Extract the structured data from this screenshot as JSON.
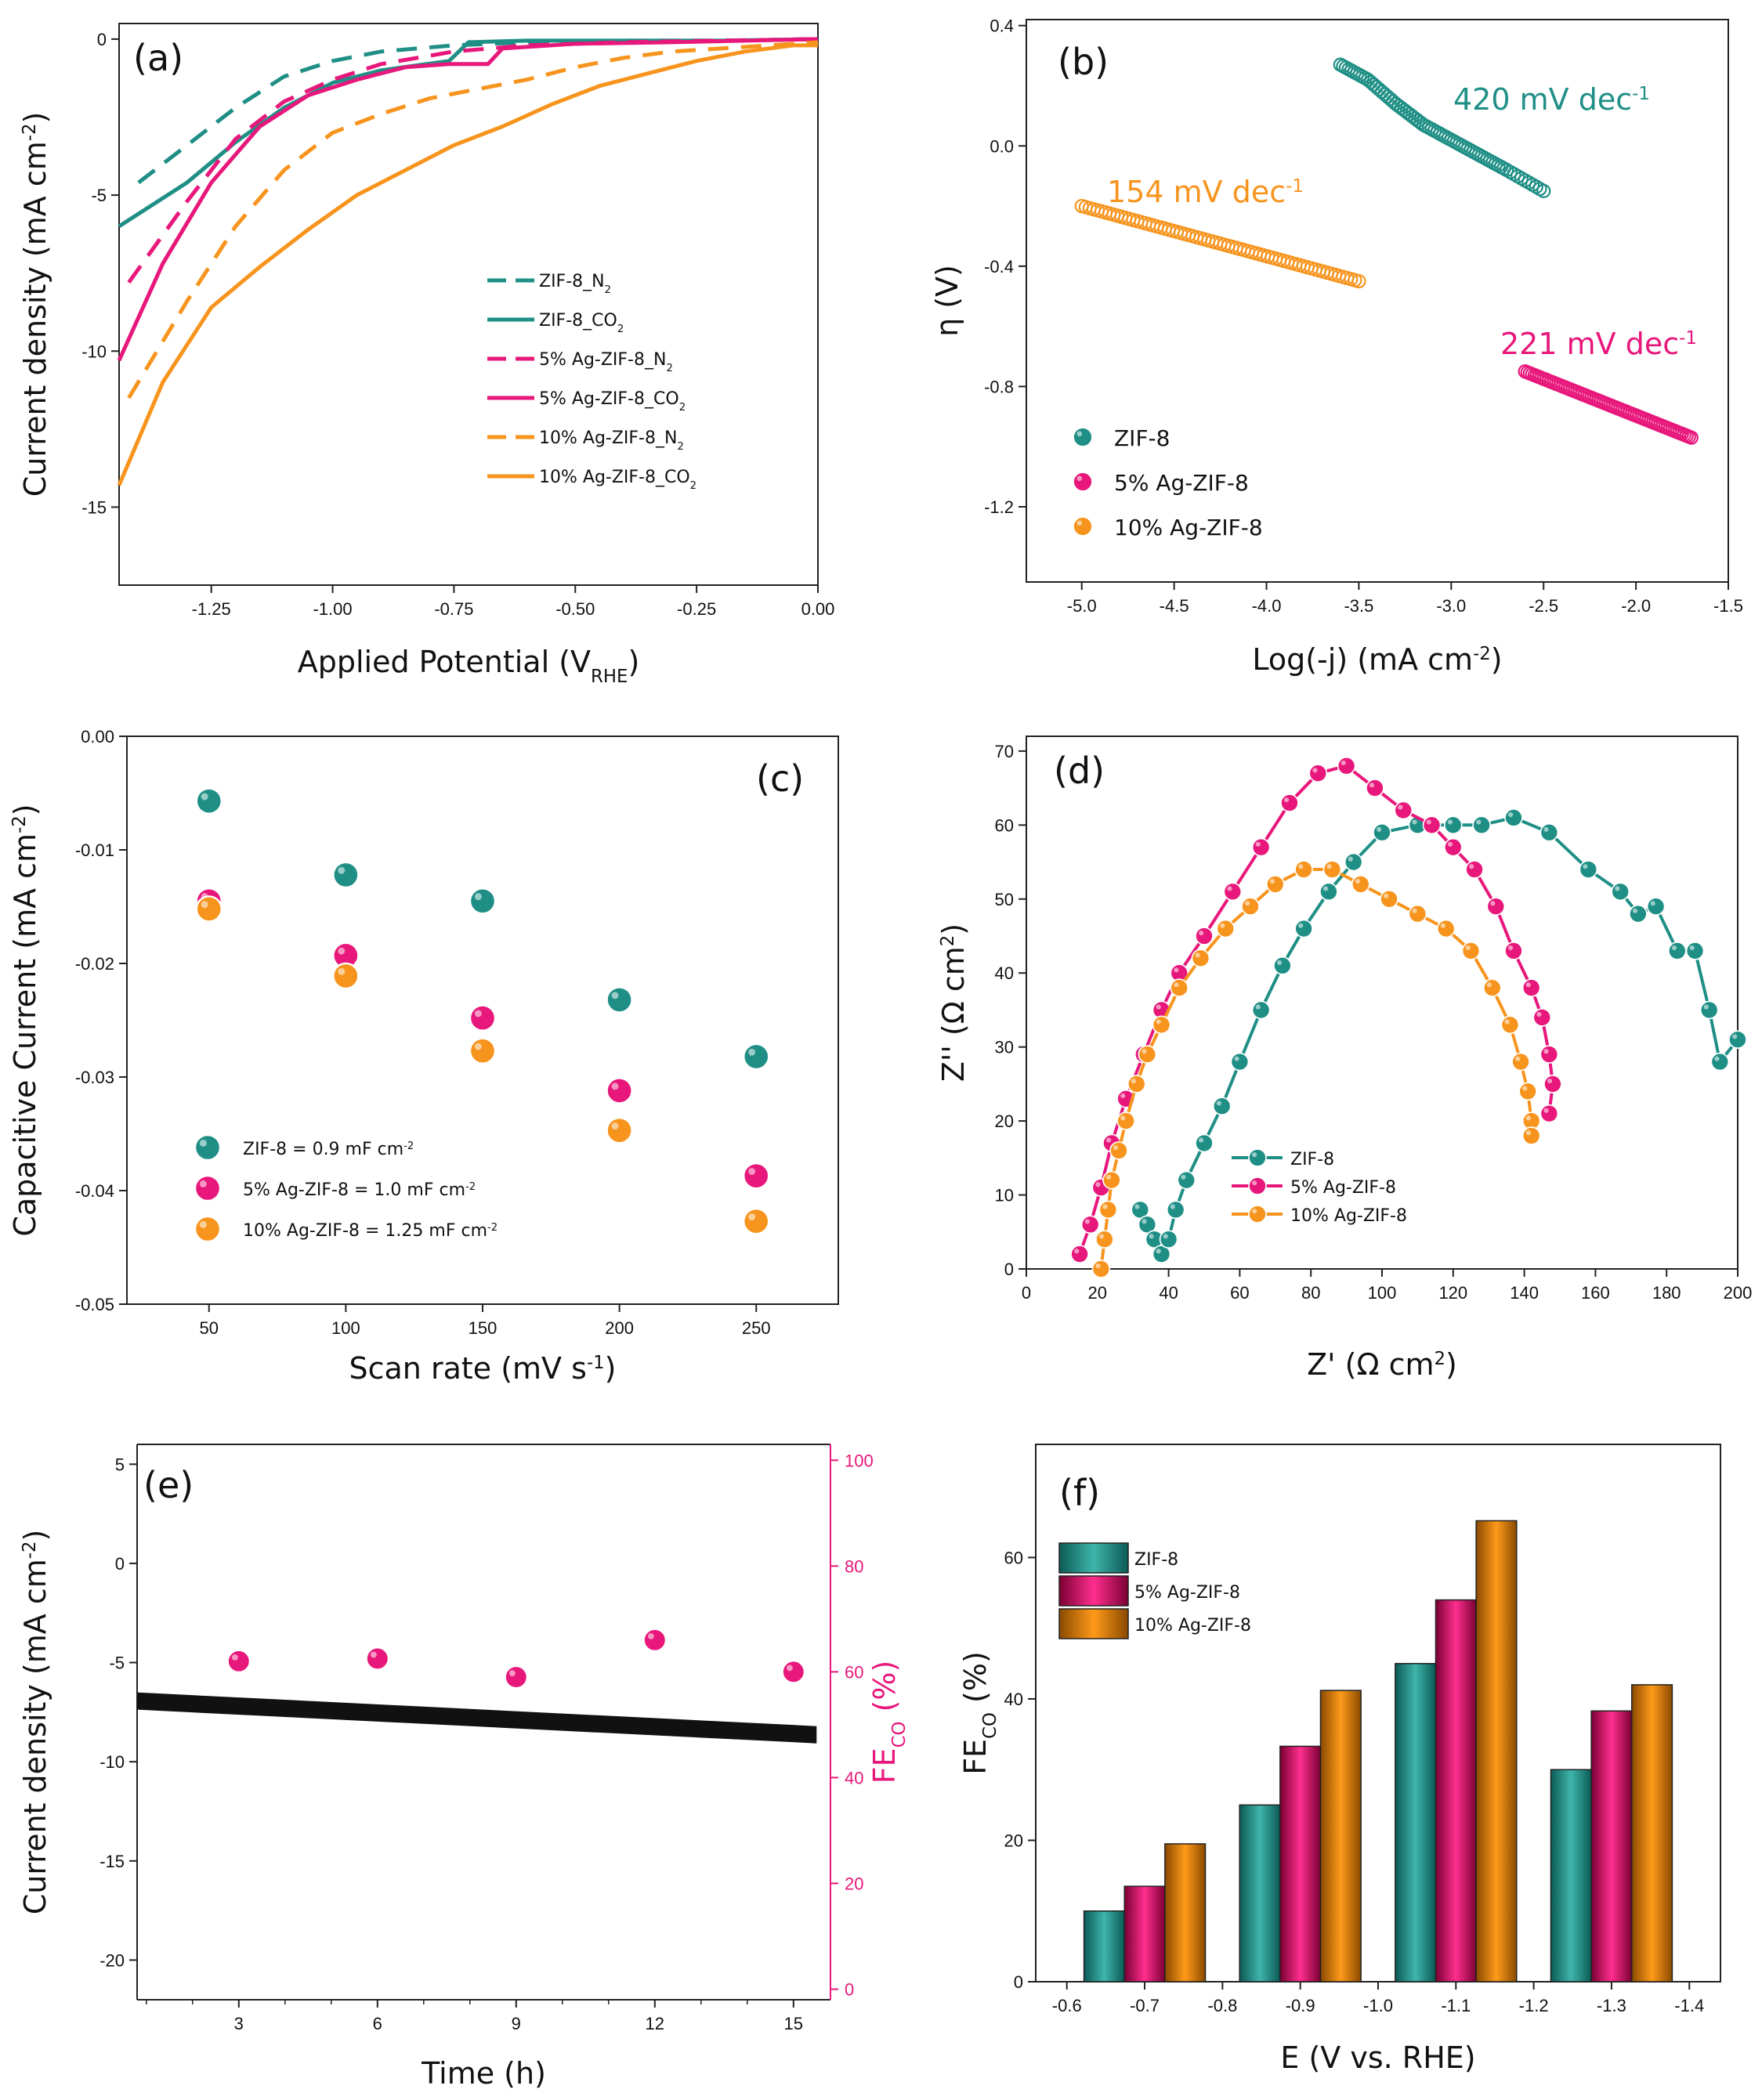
{
  "colors": {
    "teal": "#1f8f86",
    "pink": "#e8177b",
    "orange": "#f7941d",
    "black": "#111111"
  },
  "chart_data": [
    {
      "id": "a",
      "type": "line",
      "panel_label": "(a)",
      "xlabel": "Applied Potential (V",
      "xlabel_sub": "RHE",
      "xlabel_end": ")",
      "ylabel": "Current density (mA cm",
      "ylabel_sup": "-2",
      "ylabel_end": ")",
      "xlim": [
        -1.44,
        0.0
      ],
      "ylim": [
        -17.5,
        0.5
      ],
      "xticks": [
        -1.25,
        -1.0,
        -0.75,
        -0.5,
        -0.25,
        0.0
      ],
      "xtick_labels": [
        "-1.25",
        "-1.00",
        "-0.75",
        "-0.50",
        "-0.25",
        "0.00"
      ],
      "yticks": [
        0,
        -5,
        -10,
        -15
      ],
      "ytick_labels": [
        "0",
        "-5",
        "-10",
        "-15"
      ],
      "series": [
        {
          "name": "ZIF-8_N",
          "sub": "2",
          "color": "teal",
          "dash": true,
          "x": [
            -1.4,
            -1.3,
            -1.2,
            -1.1,
            -1.0,
            -0.9,
            -0.75,
            -0.6,
            -0.4,
            -0.2,
            0.0
          ],
          "y": [
            -4.6,
            -3.4,
            -2.2,
            -1.2,
            -0.7,
            -0.4,
            -0.2,
            -0.1,
            -0.05,
            -0.05,
            0.0
          ]
        },
        {
          "name": "ZIF-8_CO",
          "sub": "2",
          "color": "teal",
          "dash": false,
          "x": [
            -1.44,
            -1.3,
            -1.2,
            -1.1,
            -1.0,
            -0.9,
            -0.76,
            -0.72,
            -0.6,
            -0.4,
            -0.2,
            0.0
          ],
          "y": [
            -6.0,
            -4.6,
            -3.3,
            -2.2,
            -1.4,
            -1.0,
            -0.7,
            -0.1,
            -0.05,
            -0.05,
            -0.05,
            0.0
          ]
        },
        {
          "name": "5% Ag-ZIF-8_N",
          "sub": "2",
          "color": "pink",
          "dash": true,
          "x": [
            -1.42,
            -1.3,
            -1.2,
            -1.1,
            -1.0,
            -0.9,
            -0.75,
            -0.6,
            -0.4,
            -0.2,
            0.0
          ],
          "y": [
            -7.8,
            -5.2,
            -3.2,
            -2.0,
            -1.3,
            -0.8,
            -0.4,
            -0.2,
            -0.1,
            -0.05,
            0.0
          ]
        },
        {
          "name": "5% Ag-ZIF-8_CO",
          "sub": "2",
          "color": "pink",
          "dash": false,
          "x": [
            -1.44,
            -1.35,
            -1.25,
            -1.15,
            -1.05,
            -0.95,
            -0.85,
            -0.76,
            -0.68,
            -0.65,
            -0.5,
            -0.3,
            0.0
          ],
          "y": [
            -10.3,
            -7.2,
            -4.6,
            -2.8,
            -1.8,
            -1.3,
            -0.9,
            -0.8,
            -0.8,
            -0.3,
            -0.15,
            -0.1,
            0.0
          ]
        },
        {
          "name": "10% Ag-ZIF-8_N",
          "sub": "2",
          "color": "orange",
          "dash": true,
          "x": [
            -1.42,
            -1.3,
            -1.2,
            -1.1,
            -1.0,
            -0.9,
            -0.8,
            -0.7,
            -0.6,
            -0.5,
            -0.4,
            -0.3,
            -0.2,
            -0.1,
            0.0
          ],
          "y": [
            -11.5,
            -8.4,
            -6.0,
            -4.2,
            -3.0,
            -2.4,
            -1.9,
            -1.6,
            -1.3,
            -0.9,
            -0.6,
            -0.4,
            -0.3,
            -0.2,
            -0.1
          ]
        },
        {
          "name": "10% Ag-ZIF-8_CO",
          "sub": "2",
          "color": "orange",
          "dash": false,
          "x": [
            -1.44,
            -1.35,
            -1.25,
            -1.15,
            -1.05,
            -0.95,
            -0.85,
            -0.75,
            -0.65,
            -0.55,
            -0.45,
            -0.35,
            -0.25,
            -0.15,
            -0.05,
            0.0
          ],
          "y": [
            -14.3,
            -11.0,
            -8.6,
            -7.3,
            -6.1,
            -5.0,
            -4.2,
            -3.4,
            -2.8,
            -2.1,
            -1.5,
            -1.1,
            -0.7,
            -0.4,
            -0.2,
            -0.2
          ]
        }
      ]
    },
    {
      "id": "b",
      "type": "scatter",
      "panel_label": "(b)",
      "xlabel": "Log(-j) (mA cm",
      "xlabel_sup": "-2",
      "xlabel_end": ")",
      "ylabel": "η (V)",
      "xlim": [
        -5.3,
        -1.5
      ],
      "ylim": [
        -1.45,
        0.42
      ],
      "xticks": [
        -5.0,
        -4.5,
        -4.0,
        -3.5,
        -3.0,
        -2.5,
        -2.0,
        -1.5
      ],
      "xtick_labels": [
        "-5.0",
        "-4.5",
        "-4.0",
        "-3.5",
        "-3.0",
        "-2.5",
        "-2.0",
        "-1.5"
      ],
      "yticks": [
        0.4,
        0.0,
        -0.4,
        -0.8,
        -1.2
      ],
      "ytick_labels": [
        "0.4",
        "0.0",
        "-0.4",
        "-0.8",
        "-1.2"
      ],
      "series": [
        {
          "name": "ZIF-8",
          "color": "teal",
          "x": [
            -3.6,
            -3.45,
            -3.3,
            -3.15,
            -3.0,
            -2.85,
            -2.7,
            -2.5
          ],
          "y": [
            0.27,
            0.22,
            0.14,
            0.07,
            0.02,
            -0.03,
            -0.08,
            -0.15
          ]
        },
        {
          "name": "5% Ag-ZIF-8",
          "color": "pink",
          "x": [
            -2.6,
            -1.7
          ],
          "y": [
            -0.75,
            -0.97
          ]
        },
        {
          "name": "10% Ag-ZIF-8",
          "color": "orange",
          "x": [
            -5.0,
            -3.5
          ],
          "y": [
            -0.2,
            -0.45
          ]
        }
      ],
      "annotations": [
        {
          "text": "420 mV dec",
          "sup": "-1",
          "color": "teal"
        },
        {
          "text": "154 mV dec",
          "sup": "-1",
          "color": "orange"
        },
        {
          "text": "221 mV dec",
          "sup": "-1",
          "color": "pink"
        }
      ]
    },
    {
      "id": "c",
      "type": "scatter",
      "panel_label": "(c)",
      "xlabel": "Scan rate (mV s",
      "xlabel_sup": "-1",
      "xlabel_end": ")",
      "ylabel": "Capacitive Current (mA cm",
      "ylabel_sup": "-2",
      "ylabel_end": ")",
      "xlim": [
        20,
        280
      ],
      "ylim": [
        -0.05,
        0.0
      ],
      "xticks": [
        50,
        100,
        150,
        200,
        250
      ],
      "xtick_labels": [
        "50",
        "100",
        "150",
        "200",
        "250"
      ],
      "yticks": [
        0.0,
        -0.01,
        -0.02,
        -0.03,
        -0.04,
        -0.05
      ],
      "ytick_labels": [
        "0.00",
        "-0.01",
        "-0.02",
        "-0.03",
        "-0.04",
        "-0.05"
      ],
      "series": [
        {
          "name": "ZIF-8 = 0.9 mF cm",
          "sup": "-2",
          "color": "teal",
          "x": [
            50,
            100,
            150,
            200,
            250
          ],
          "y": [
            -0.0057,
            -0.0122,
            -0.0145,
            -0.0232,
            -0.0282
          ]
        },
        {
          "name": "5% Ag-ZIF-8 = 1.0 mF cm",
          "sup": "-2",
          "color": "pink",
          "x": [
            50,
            100,
            150,
            200,
            250
          ],
          "y": [
            -0.0145,
            -0.0193,
            -0.0248,
            -0.0312,
            -0.0387
          ]
        },
        {
          "name": "10% Ag-ZIF-8 = 1.25 mF cm",
          "sup": "-2",
          "color": "orange",
          "x": [
            50,
            100,
            150,
            200,
            250
          ],
          "y": [
            -0.0152,
            -0.0211,
            -0.0277,
            -0.0347,
            -0.0427
          ]
        }
      ]
    },
    {
      "id": "d",
      "type": "line",
      "panel_label": "(d)",
      "xlabel": "Z' (Ω cm",
      "xlabel_sup": "2",
      "xlabel_end": ")",
      "ylabel": "Z'' (Ω cm",
      "ylabel_sup": "2",
      "ylabel_end": ")",
      "xlim": [
        0,
        200
      ],
      "ylim": [
        0,
        72
      ],
      "xticks": [
        0,
        20,
        40,
        60,
        80,
        100,
        120,
        140,
        160,
        180,
        200
      ],
      "xtick_labels": [
        "0",
        "20",
        "40",
        "60",
        "80",
        "100",
        "120",
        "140",
        "160",
        "180",
        "200"
      ],
      "yticks": [
        0,
        10,
        20,
        30,
        40,
        50,
        60,
        70
      ],
      "ytick_labels": [
        "0",
        "10",
        "20",
        "30",
        "40",
        "50",
        "60",
        "70"
      ],
      "series": [
        {
          "name": "ZIF-8",
          "color": "teal",
          "x": [
            32,
            34,
            36,
            38,
            40,
            42,
            45,
            50,
            55,
            60,
            66,
            72,
            78,
            85,
            92,
            100,
            110,
            120,
            128,
            137,
            147,
            158,
            167,
            172,
            177,
            183,
            188,
            192,
            195,
            200
          ],
          "y": [
            8,
            6,
            4,
            2,
            4,
            8,
            12,
            17,
            22,
            28,
            35,
            41,
            46,
            51,
            55,
            59,
            60,
            60,
            60,
            61,
            59,
            54,
            51,
            48,
            49,
            43,
            43,
            35,
            28,
            31
          ]
        },
        {
          "name": "5% Ag-ZIF-8",
          "color": "pink",
          "x": [
            15,
            18,
            21,
            24,
            28,
            33,
            38,
            43,
            50,
            58,
            66,
            74,
            82,
            90,
            98,
            106,
            114,
            120,
            126,
            132,
            137,
            142,
            145,
            147,
            148,
            147
          ],
          "y": [
            2,
            6,
            11,
            17,
            23,
            29,
            35,
            40,
            45,
            51,
            57,
            63,
            67,
            68,
            65,
            62,
            60,
            57,
            54,
            49,
            43,
            38,
            34,
            29,
            25,
            21
          ]
        },
        {
          "name": "10% Ag-ZIF-8",
          "color": "orange",
          "x": [
            21,
            22,
            23,
            24,
            26,
            28,
            31,
            34,
            38,
            43,
            49,
            56,
            63,
            70,
            78,
            86,
            94,
            102,
            110,
            118,
            125,
            131,
            136,
            139,
            141,
            142,
            142
          ],
          "y": [
            0,
            4,
            8,
            12,
            16,
            20,
            25,
            29,
            33,
            38,
            42,
            46,
            49,
            52,
            54,
            54,
            52,
            50,
            48,
            46,
            43,
            38,
            33,
            28,
            24,
            20,
            18
          ]
        }
      ]
    },
    {
      "id": "e",
      "type": "line",
      "panel_label": "(e)",
      "xlabel": "Time (h)",
      "ylabel": "Current density (mA cm",
      "ylabel_sup": "-2",
      "ylabel_end": ")",
      "y2label": "FE",
      "y2label_sub": "CO",
      "y2label_end": " (%)",
      "xlim": [
        0.8,
        15.8
      ],
      "ylim": [
        -22,
        6
      ],
      "y2lim": [
        -2,
        103
      ],
      "xticks": [
        3,
        6,
        9,
        12,
        15
      ],
      "xtick_labels": [
        "3",
        "6",
        "9",
        "12",
        "15"
      ],
      "yticks": [
        5,
        0,
        -5,
        -10,
        -15,
        -20
      ],
      "ytick_labels": [
        "5",
        "0",
        "-5",
        "-10",
        "-15",
        "-20"
      ],
      "y2ticks": [
        0,
        20,
        40,
        60,
        80,
        100
      ],
      "y2tick_labels": [
        "0",
        "20",
        "40",
        "60",
        "80",
        "100"
      ],
      "series": [
        {
          "name": "Current density",
          "color": "black",
          "x": [
            0.8,
            15.5
          ],
          "y": [
            -6.9,
            -8.6
          ]
        },
        {
          "name": "FE CO",
          "color": "pink",
          "axis": "right",
          "x": [
            3,
            6,
            9,
            12,
            15
          ],
          "y": [
            62,
            62.5,
            59,
            66,
            60
          ]
        }
      ]
    },
    {
      "id": "f",
      "type": "bar",
      "panel_label": "(f)",
      "xlabel": "E (V vs. RHE)",
      "ylabel": "FE",
      "ylabel_sub": "CO",
      "ylabel_end": " (%)",
      "xlim": [
        -0.56,
        -1.44
      ],
      "ylim": [
        0,
        76
      ],
      "xticks": [
        -0.6,
        -0.7,
        -0.8,
        -0.9,
        -1.0,
        -1.1,
        -1.2,
        -1.3,
        -1.4
      ],
      "xtick_labels": [
        "-0.6",
        "-0.7",
        "-0.8",
        "-0.9",
        "-1.0",
        "-1.1",
        "-1.2",
        "-1.3",
        "-1.4"
      ],
      "yticks": [
        0,
        20,
        40,
        60
      ],
      "ytick_labels": [
        "0",
        "20",
        "40",
        "60"
      ],
      "categories": [
        -0.7,
        -0.9,
        -1.1,
        -1.3
      ],
      "series": [
        {
          "name": "ZIF-8",
          "color": "teal",
          "values": [
            10,
            25,
            45,
            30
          ]
        },
        {
          "name": "5% Ag-ZIF-8",
          "color": "pink",
          "values": [
            13.5,
            33.3,
            54,
            38.3
          ]
        },
        {
          "name": "10% Ag-ZIF-8",
          "color": "orange",
          "values": [
            19.5,
            41.2,
            65.2,
            42
          ]
        }
      ]
    }
  ]
}
